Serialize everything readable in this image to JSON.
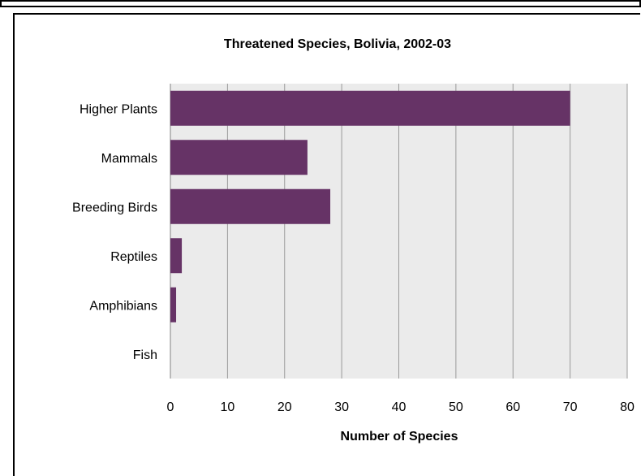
{
  "chart_data": {
    "type": "bar",
    "orientation": "horizontal",
    "title": "Threatened Species, Bolivia, 2002-03",
    "xlabel": "Number of Species",
    "ylabel": "",
    "categories": [
      "Higher Plants",
      "Mammals",
      "Breeding Birds",
      "Reptiles",
      "Amphibians",
      "Fish"
    ],
    "values": [
      70,
      24,
      28,
      2,
      1,
      0
    ],
    "xlim": [
      0,
      80
    ],
    "xticks": [
      "0",
      "10",
      "20",
      "30",
      "40",
      "50",
      "60",
      "70",
      "80"
    ],
    "grid": "vertical",
    "legend": "none",
    "colors": {
      "bar": "#663366",
      "plot_background": "#ebebeb",
      "grid": "#9a9a9a"
    }
  }
}
